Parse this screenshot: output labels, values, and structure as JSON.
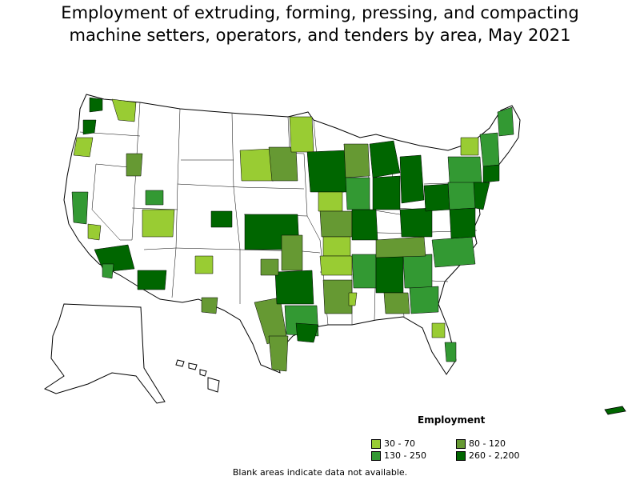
{
  "title_line1": "Employment of extruding, forming, pressing, and compacting",
  "title_line2": "machine setters, operators, and tenders by area, May 2021",
  "legend": {
    "title": "Employment",
    "items": [
      {
        "label": "30 - 70",
        "color": "#99cc33"
      },
      {
        "label": "80 - 120",
        "color": "#669933"
      },
      {
        "label": "130 - 250",
        "color": "#339933"
      },
      {
        "label": "260 - 2,200",
        "color": "#006600"
      }
    ]
  },
  "note": "Blank areas indicate data not available.",
  "colors": {
    "blank": "#ffffff",
    "border": "#000000",
    "c1": "#99cc33",
    "c2": "#669933",
    "c3": "#339933",
    "c4": "#006600"
  }
}
